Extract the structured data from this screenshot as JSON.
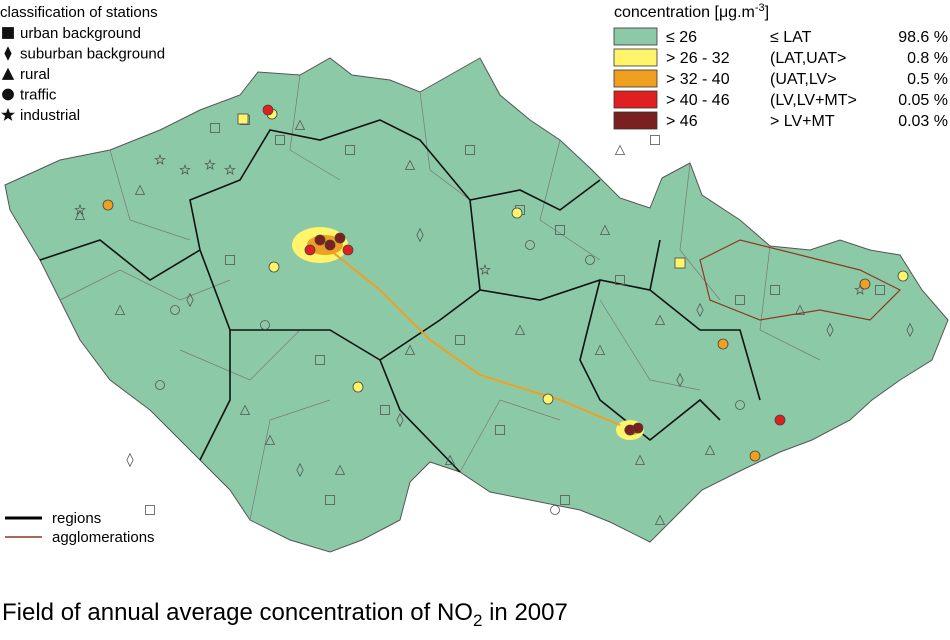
{
  "legend_stations": {
    "title": "classification of stations",
    "items": [
      "urban background",
      "suburban background",
      "rural",
      "traffic",
      "industrial"
    ]
  },
  "legend_concentration": {
    "title_parts": [
      "concentration [μg.m",
      "-3",
      "]"
    ],
    "rows": [
      {
        "range": "≤ 26",
        "class": "≤ LAT",
        "share": "98.6 %",
        "color": "#8ccaa7"
      },
      {
        "range": "> 26 - 32",
        "class": "(LAT,UAT>",
        "share": "0.8 %",
        "color": "#fff46a"
      },
      {
        "range": "> 32 - 40",
        "class": "(UAT,LV>",
        "share": "0.5 %",
        "color": "#f0a020"
      },
      {
        "range": "> 40 - 46",
        "class": "(LV,LV+MT>",
        "share": "0.05 %",
        "color": "#e02020"
      },
      {
        "range": "> 46",
        "class": "> LV+MT",
        "share": "0.03 %",
        "color": "#7a2020"
      }
    ]
  },
  "line_legend": [
    "regions",
    "agglomerations"
  ],
  "title_parts": [
    "Field of annual average concentration of NO",
    "2",
    " in 2007"
  ]
}
